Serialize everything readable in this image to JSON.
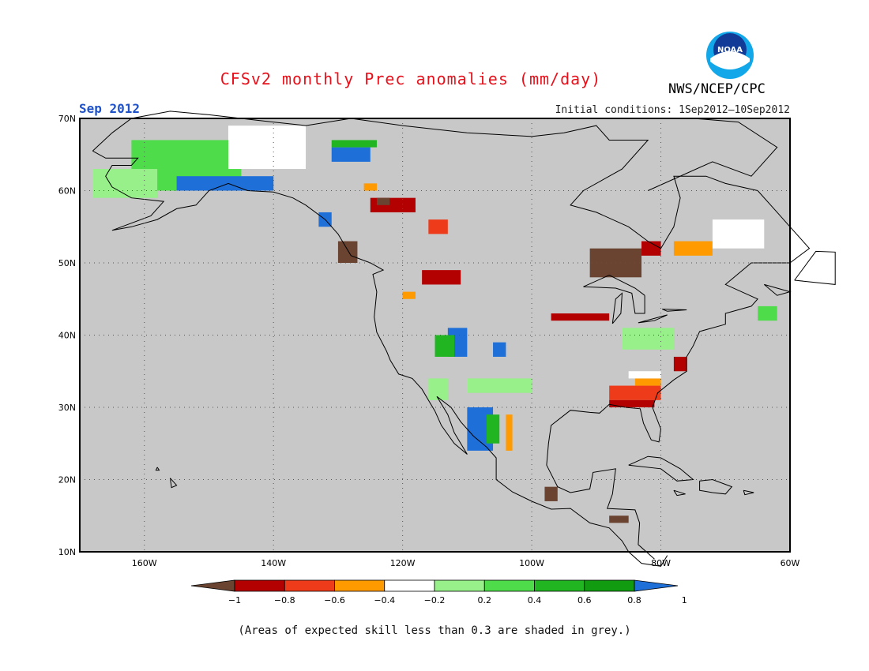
{
  "title": "CFSv2 monthly Prec anomalies (mm/day)",
  "period": "Sep 2012",
  "organization": "NWS/NCEP/CPC",
  "logo_text": "NOAA",
  "initial_conditions": "Initial conditions: 1Sep2012—10Sep2012",
  "footnote": "(Areas of expected skill less than 0.3 are shaded in grey.)",
  "map": {
    "lat_labels": [
      "70N",
      "60N",
      "50N",
      "40N",
      "30N",
      "20N",
      "10N"
    ],
    "lon_labels": [
      "160W",
      "140W",
      "120W",
      "100W",
      "80W",
      "60W"
    ],
    "lat_values": [
      70,
      60,
      50,
      40,
      30,
      20,
      10
    ],
    "lon_values": [
      -160,
      -140,
      -120,
      -100,
      -80,
      -60
    ],
    "lon_range": [
      -170,
      -60
    ],
    "lat_range": [
      10,
      70
    ],
    "background_color": "#c8c8c8",
    "grid": "dotted"
  },
  "legend": {
    "labels": [
      "−1",
      "−0.8",
      "−0.6",
      "−0.4",
      "−0.2",
      "0.2",
      "0.4",
      "0.6",
      "0.8",
      "1"
    ],
    "colors": [
      "#6b4431",
      "#b30000",
      "#ee3b1a",
      "#ff9a00",
      "#ffffff",
      "#98f08a",
      "#4fdc4a",
      "#22b522",
      "#119b11",
      "#1f6fd8"
    ]
  },
  "anomaly_regions": [
    {
      "c": "#4fdc4a",
      "lon": [
        -162,
        -145
      ],
      "lat": [
        60,
        67
      ]
    },
    {
      "c": "#ffffff",
      "lon": [
        -147,
        -135
      ],
      "lat": [
        63,
        69
      ]
    },
    {
      "c": "#98f08a",
      "lon": [
        -168,
        -158
      ],
      "lat": [
        59,
        63
      ]
    },
    {
      "c": "#1f6fd8",
      "lon": [
        -155,
        -140
      ],
      "lat": [
        60,
        62
      ]
    },
    {
      "c": "#1f6fd8",
      "lon": [
        -131,
        -125
      ],
      "lat": [
        64,
        66
      ]
    },
    {
      "c": "#22b522",
      "lon": [
        -131,
        -124
      ],
      "lat": [
        66,
        67
      ]
    },
    {
      "c": "#b30000",
      "lon": [
        -125,
        -118
      ],
      "lat": [
        57,
        59
      ]
    },
    {
      "c": "#6b4431",
      "lon": [
        -124,
        -122
      ],
      "lat": [
        58,
        59
      ]
    },
    {
      "c": "#ee3b1a",
      "lon": [
        -116,
        -113
      ],
      "lat": [
        54,
        56
      ]
    },
    {
      "c": "#ff9a00",
      "lon": [
        -126,
        -124
      ],
      "lat": [
        60,
        61
      ]
    },
    {
      "c": "#6b4431",
      "lon": [
        -130,
        -127
      ],
      "lat": [
        50,
        53
      ]
    },
    {
      "c": "#1f6fd8",
      "lon": [
        -133,
        -131
      ],
      "lat": [
        55,
        57
      ]
    },
    {
      "c": "#b30000",
      "lon": [
        -117,
        -111
      ],
      "lat": [
        47,
        49
      ]
    },
    {
      "c": "#ff9a00",
      "lon": [
        -120,
        -118
      ],
      "lat": [
        45,
        46
      ]
    },
    {
      "c": "#6b4431",
      "lon": [
        -91,
        -83
      ],
      "lat": [
        48,
        52
      ]
    },
    {
      "c": "#b30000",
      "lon": [
        -83,
        -80
      ],
      "lat": [
        51,
        53
      ]
    },
    {
      "c": "#ff9a00",
      "lon": [
        -78,
        -72
      ],
      "lat": [
        51,
        53
      ]
    },
    {
      "c": "#ffffff",
      "lon": [
        -72,
        -64
      ],
      "lat": [
        52,
        56
      ]
    },
    {
      "c": "#b30000",
      "lon": [
        -97,
        -88
      ],
      "lat": [
        42,
        43
      ]
    },
    {
      "c": "#1f6fd8",
      "lon": [
        -113,
        -110
      ],
      "lat": [
        37,
        41
      ]
    },
    {
      "c": "#22b522",
      "lon": [
        -115,
        -112
      ],
      "lat": [
        37,
        40
      ]
    },
    {
      "c": "#1f6fd8",
      "lon": [
        -106,
        -104
      ],
      "lat": [
        37,
        39
      ]
    },
    {
      "c": "#ee3b1a",
      "lon": [
        -88,
        -80
      ],
      "lat": [
        31,
        33
      ]
    },
    {
      "c": "#b30000",
      "lon": [
        -88,
        -81
      ],
      "lat": [
        30,
        31
      ]
    },
    {
      "c": "#ff9a00",
      "lon": [
        -84,
        -80
      ],
      "lat": [
        33,
        34
      ]
    },
    {
      "c": "#ffffff",
      "lon": [
        -85,
        -80
      ],
      "lat": [
        34,
        35
      ]
    },
    {
      "c": "#b30000",
      "lon": [
        -78,
        -76
      ],
      "lat": [
        35,
        37
      ]
    },
    {
      "c": "#1f6fd8",
      "lon": [
        -110,
        -106
      ],
      "lat": [
        24,
        30
      ]
    },
    {
      "c": "#22b522",
      "lon": [
        -107,
        -105
      ],
      "lat": [
        25,
        29
      ]
    },
    {
      "c": "#ff9a00",
      "lon": [
        -104,
        -103
      ],
      "lat": [
        24,
        29
      ]
    },
    {
      "c": "#98f08a",
      "lon": [
        -86,
        -78
      ],
      "lat": [
        38,
        41
      ]
    },
    {
      "c": "#4fdc4a",
      "lon": [
        -65,
        -62
      ],
      "lat": [
        42,
        44
      ]
    },
    {
      "c": "#98f08a",
      "lon": [
        -110,
        -100
      ],
      "lat": [
        32,
        34
      ]
    },
    {
      "c": "#98f08a",
      "lon": [
        -116,
        -113
      ],
      "lat": [
        31,
        34
      ]
    },
    {
      "c": "#6b4431",
      "lon": [
        -98,
        -96
      ],
      "lat": [
        17,
        19
      ]
    },
    {
      "c": "#6b4431",
      "lon": [
        -88,
        -85
      ],
      "lat": [
        14,
        15
      ]
    }
  ]
}
